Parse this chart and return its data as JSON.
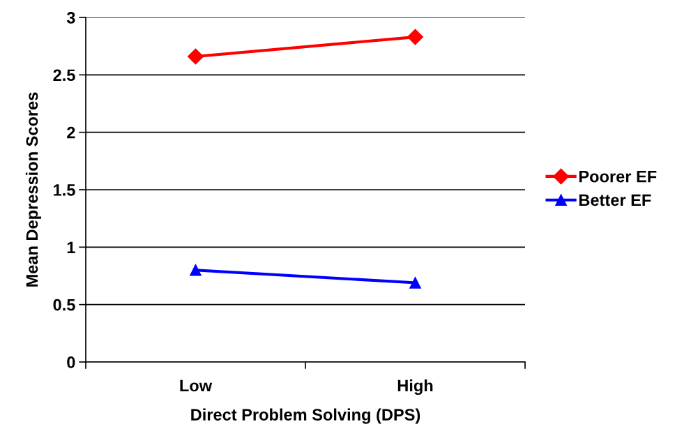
{
  "chart_data": {
    "type": "line",
    "xlabel": "Direct Problem Solving (DPS)",
    "ylabel": "Mean Depression Scores",
    "categories": [
      "Low",
      "High"
    ],
    "series": [
      {
        "name": "Poorer EF",
        "color": "#ff0000",
        "values": [
          2.66,
          2.83
        ],
        "marker": "diamond"
      },
      {
        "name": "Better EF",
        "color": "#0000ff",
        "values": [
          0.8,
          0.69
        ],
        "marker": "triangle"
      }
    ],
    "ylim": [
      0,
      3
    ],
    "yticks": [
      0,
      0.5,
      1,
      1.5,
      2,
      2.5,
      3
    ],
    "grid": "y",
    "legend": "right",
    "line_style": "solid"
  }
}
